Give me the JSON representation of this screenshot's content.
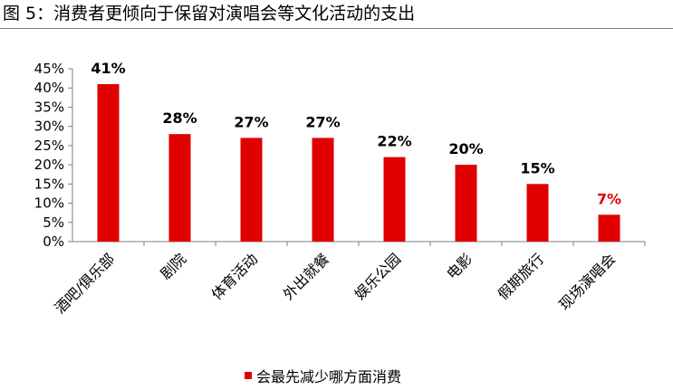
{
  "figure_title": "图 5：消费者更倾向于保留对演唱会等文化活动的支出",
  "chart_data": {
    "type": "bar",
    "categories": [
      "酒吧/俱乐部",
      "剧院",
      "体育活动",
      "外出就餐",
      "娱乐公园",
      "电影",
      "假期旅行",
      "现场演唱会"
    ],
    "series": [
      {
        "name": "会最先减少哪方面消费",
        "values": [
          41,
          28,
          27,
          27,
          22,
          20,
          15,
          7
        ]
      }
    ],
    "data_labels": [
      "41%",
      "28%",
      "27%",
      "27%",
      "22%",
      "20%",
      "15%",
      "7%"
    ],
    "yticks": [
      "0%",
      "5%",
      "10%",
      "15%",
      "20%",
      "25%",
      "30%",
      "35%",
      "40%",
      "45%"
    ],
    "ylim": [
      0,
      45
    ],
    "unit": "%",
    "grid": false,
    "legend_position": "bottom",
    "colors": {
      "bar": "#e00000",
      "highlight_label": "#e00000",
      "label": "#000000",
      "axis": "#7f7f7f"
    },
    "highlight_index": 7
  }
}
